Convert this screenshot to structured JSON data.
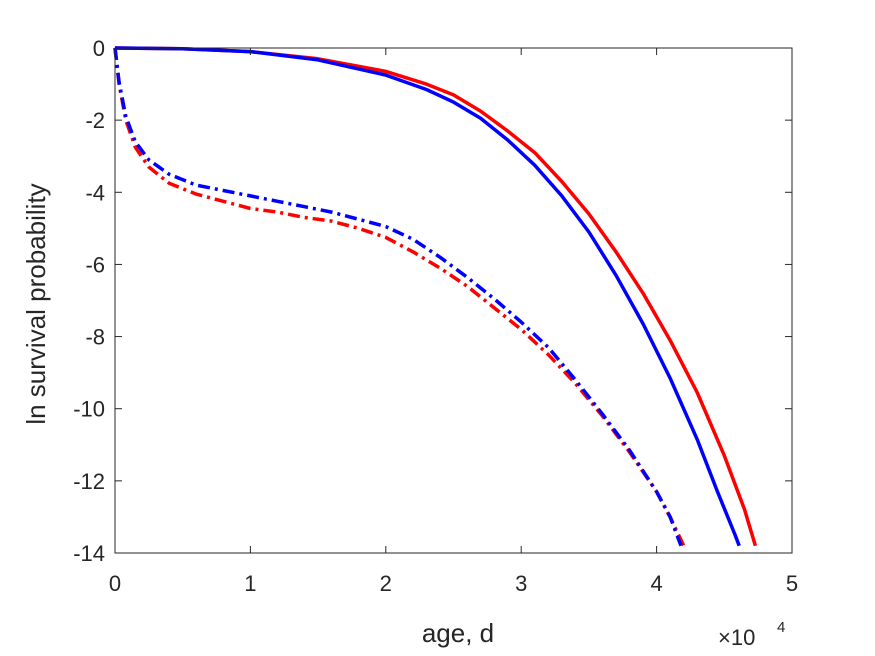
{
  "chart_data": {
    "type": "line",
    "title": "",
    "xlabel": "age, d",
    "ylabel": "ln survival probability",
    "x_multiplier_base": "×10",
    "x_multiplier_exp": "4",
    "xlim": [
      0,
      50000
    ],
    "ylim": [
      -14,
      0
    ],
    "xticks": [
      0,
      10000,
      20000,
      30000,
      40000,
      50000
    ],
    "xtick_labels": [
      "0",
      "1",
      "2",
      "3",
      "4",
      "5"
    ],
    "yticks": [
      0,
      -2,
      -4,
      -6,
      -8,
      -10,
      -12,
      -14
    ],
    "ytick_labels": [
      "0",
      "-2",
      "-4",
      "-6",
      "-8",
      "-10",
      "-12",
      "-14"
    ],
    "grid": false,
    "box": true,
    "series": [
      {
        "color": "#ff0000",
        "style": "solid",
        "x": [
          0,
          5000,
          10000,
          15000,
          20000,
          23000,
          25000,
          27000,
          29000,
          31000,
          33000,
          35000,
          37000,
          39000,
          41000,
          43000,
          45000,
          46500,
          47300
        ],
        "y": [
          0,
          -0.02,
          -0.1,
          -0.3,
          -0.65,
          -1.0,
          -1.3,
          -1.75,
          -2.3,
          -2.9,
          -3.7,
          -4.6,
          -5.65,
          -6.8,
          -8.1,
          -9.55,
          -11.3,
          -12.8,
          -13.8
        ]
      },
      {
        "color": "#0000ff",
        "style": "solid",
        "x": [
          0,
          5000,
          10000,
          15000,
          20000,
          23000,
          25000,
          27000,
          29000,
          31000,
          33000,
          35000,
          37000,
          39000,
          41000,
          43000,
          44500,
          45800,
          46100
        ],
        "y": [
          0,
          -0.02,
          -0.1,
          -0.33,
          -0.75,
          -1.15,
          -1.5,
          -1.95,
          -2.55,
          -3.25,
          -4.1,
          -5.1,
          -6.3,
          -7.65,
          -9.15,
          -10.85,
          -12.3,
          -13.5,
          -13.8
        ]
      },
      {
        "color": "#ff0000",
        "style": "dashdot",
        "x": [
          0,
          300,
          800,
          1500,
          2500,
          4000,
          6000,
          8000,
          10000,
          12000,
          14000,
          16000,
          18000,
          20000,
          22000,
          24000,
          26000,
          28000,
          30000,
          32000,
          34000,
          36000,
          38000,
          40000,
          41000,
          42000
        ],
        "y": [
          0,
          -1.0,
          -2.0,
          -2.75,
          -3.3,
          -3.75,
          -4.05,
          -4.25,
          -4.45,
          -4.55,
          -4.7,
          -4.8,
          -5.0,
          -5.25,
          -5.65,
          -6.1,
          -6.6,
          -7.2,
          -7.8,
          -8.5,
          -9.3,
          -10.2,
          -11.2,
          -12.3,
          -13.0,
          -13.8
        ]
      },
      {
        "color": "#0000ff",
        "style": "dashdot",
        "x": [
          0,
          300,
          800,
          1500,
          2500,
          4000,
          6000,
          8000,
          10000,
          12000,
          14000,
          16000,
          18000,
          20000,
          22000,
          24000,
          26000,
          28000,
          30000,
          32000,
          34000,
          36000,
          38000,
          40000,
          41000,
          41800
        ],
        "y": [
          0,
          -0.95,
          -1.9,
          -2.6,
          -3.1,
          -3.5,
          -3.8,
          -3.95,
          -4.1,
          -4.25,
          -4.4,
          -4.55,
          -4.75,
          -4.95,
          -5.3,
          -5.8,
          -6.35,
          -6.95,
          -7.6,
          -8.3,
          -9.2,
          -10.15,
          -11.15,
          -12.3,
          -13.0,
          -13.8
        ]
      }
    ]
  }
}
